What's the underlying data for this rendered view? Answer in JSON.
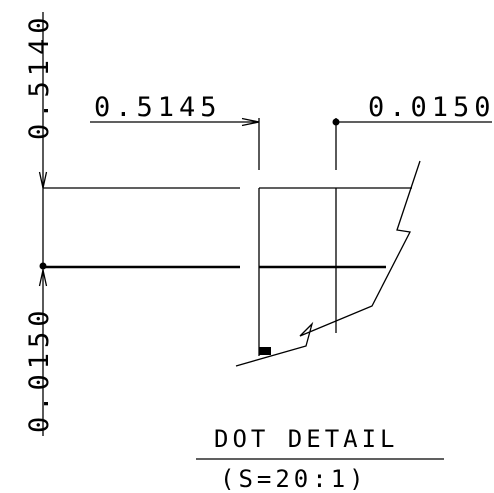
{
  "dimensions": {
    "top_left": "0.5145",
    "top_right": "0.0150",
    "left_vertical_upper": "0.5140",
    "left_vertical_lower": "0.0150"
  },
  "title": {
    "main": "DOT DETAIL",
    "scale": "(S=20:1)"
  }
}
